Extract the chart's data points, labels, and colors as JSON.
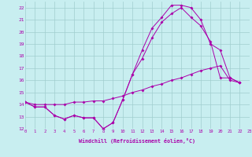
{
  "xlabel": "Windchill (Refroidissement éolien,°C)",
  "bg_color": "#c8eef0",
  "grid_color": "#a0cece",
  "line_color": "#aa00aa",
  "xmin": 0,
  "xmax": 23,
  "ymin": 12,
  "ymax": 22.5,
  "yticks": [
    12,
    13,
    14,
    15,
    16,
    17,
    18,
    19,
    20,
    21,
    22
  ],
  "xticks": [
    0,
    1,
    2,
    3,
    4,
    5,
    6,
    7,
    8,
    9,
    10,
    11,
    12,
    13,
    14,
    15,
    16,
    17,
    18,
    19,
    20,
    21,
    22,
    23
  ],
  "series1_x": [
    0,
    1,
    2,
    3,
    4,
    5,
    6,
    7,
    8,
    9,
    10,
    11,
    12,
    13,
    14,
    15,
    16,
    17,
    18,
    19,
    20,
    21,
    22
  ],
  "series1_y": [
    14.2,
    13.8,
    13.8,
    13.1,
    12.8,
    13.1,
    12.9,
    12.9,
    12.0,
    12.5,
    14.4,
    16.5,
    18.5,
    20.3,
    21.2,
    22.2,
    22.2,
    22.0,
    21.0,
    19.0,
    18.5,
    16.2,
    15.8
  ],
  "series2_x": [
    0,
    1,
    2,
    3,
    4,
    5,
    6,
    7,
    8,
    9,
    10,
    11,
    12,
    13,
    14,
    15,
    16,
    17,
    18,
    19,
    20,
    21,
    22
  ],
  "series2_y": [
    14.2,
    13.8,
    13.8,
    13.1,
    12.8,
    13.1,
    12.9,
    12.9,
    12.0,
    12.5,
    14.4,
    16.5,
    17.8,
    19.5,
    20.8,
    21.5,
    22.0,
    21.2,
    20.5,
    19.2,
    16.2,
    16.2,
    15.8
  ],
  "series3_x": [
    0,
    1,
    2,
    3,
    4,
    5,
    6,
    7,
    8,
    9,
    10,
    11,
    12,
    13,
    14,
    15,
    16,
    17,
    18,
    19,
    20,
    21,
    22
  ],
  "series3_y": [
    14.2,
    14.0,
    14.0,
    14.0,
    14.0,
    14.2,
    14.2,
    14.3,
    14.3,
    14.5,
    14.7,
    15.0,
    15.2,
    15.5,
    15.7,
    16.0,
    16.2,
    16.5,
    16.8,
    17.0,
    17.2,
    16.0,
    15.8
  ]
}
